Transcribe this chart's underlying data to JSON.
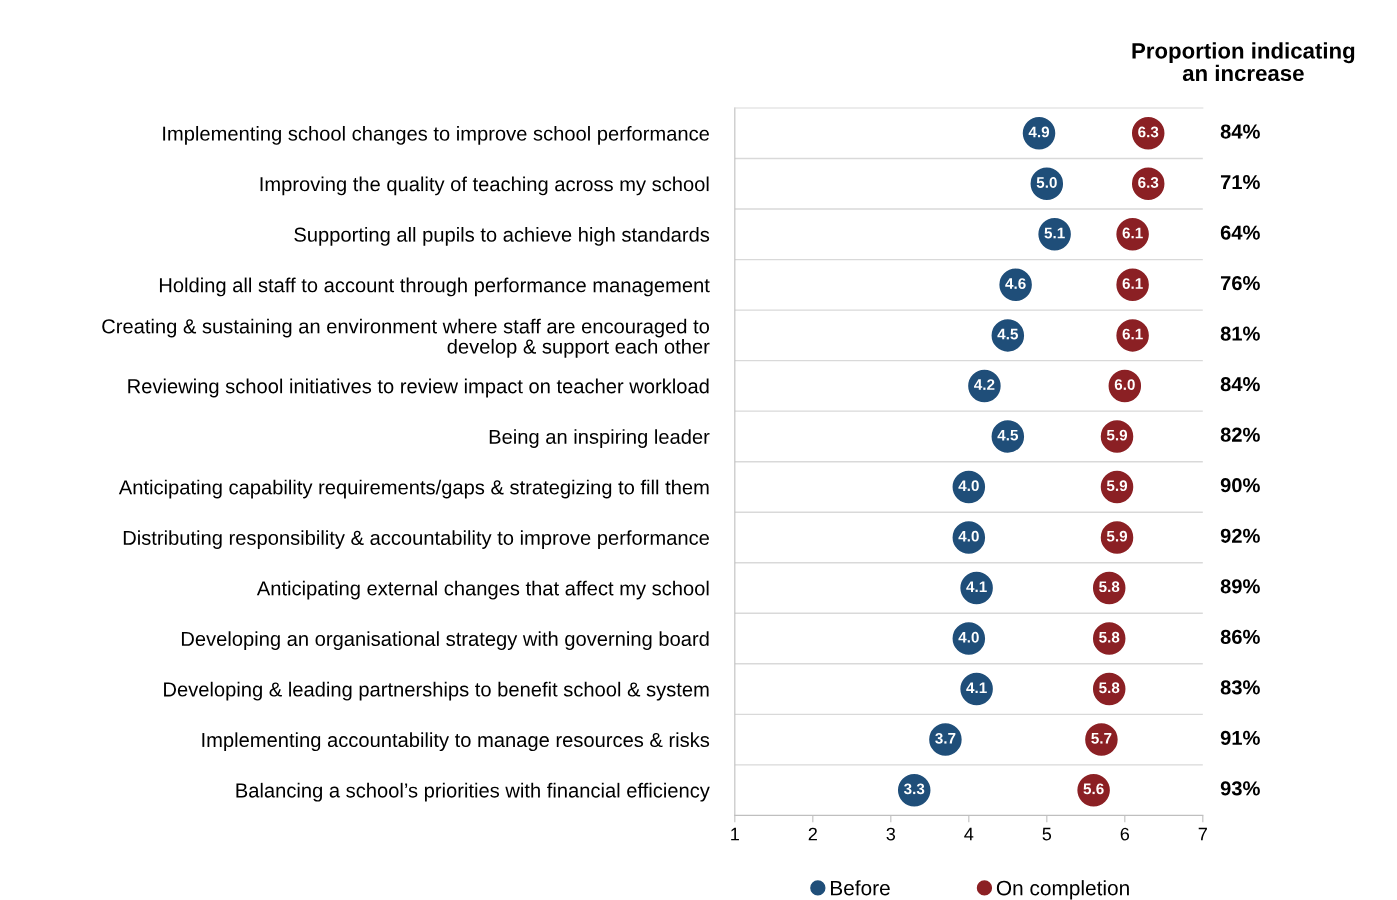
{
  "chart_data": {
    "type": "scatter",
    "categories": [
      "Implementing school changes to improve school performance",
      "Improving the quality of teaching across my school",
      "Supporting all pupils to achieve high standards",
      "Holding all staff to account through performance management",
      "Creating & sustaining an environment where staff are encouraged to\ndevelop & support each other",
      "Reviewing school initiatives to review impact on teacher workload",
      "Being an inspiring leader",
      "Anticipating capability requirements/gaps & strategizing to fill them",
      "Distributing responsibility & accountability to improve performance",
      "Anticipating external changes that affect my school",
      "Developing an organisational strategy with governing board",
      "Developing & leading partnerships to benefit school & system",
      "Implementing accountability to manage resources & risks",
      "Balancing a school’s priorities with financial efficiency"
    ],
    "orientation": "horizontal",
    "series": [
      {
        "name": "Before",
        "color": "#1f4e79",
        "values": [
          4.9,
          5.0,
          5.1,
          4.6,
          4.5,
          4.2,
          4.5,
          4.0,
          4.0,
          4.1,
          4.0,
          4.1,
          3.7,
          3.3
        ],
        "value_labels": [
          "4.9",
          "5.0",
          "5.1",
          "4.6",
          "4.5",
          "4.2",
          "4.5",
          "4.0",
          "4.0",
          "4.1",
          "4.0",
          "4.1",
          "3.7",
          "3.3"
        ]
      },
      {
        "name": "On completion",
        "color": "#8b2024",
        "values": [
          6.3,
          6.3,
          6.1,
          6.1,
          6.1,
          6.0,
          5.9,
          5.9,
          5.9,
          5.8,
          5.8,
          5.8,
          5.7,
          5.6
        ],
        "value_labels": [
          "6.3",
          "6.3",
          "6.1",
          "6.1",
          "6.1",
          "6.0",
          "5.9",
          "5.9",
          "5.9",
          "5.8",
          "5.8",
          "5.8",
          "5.7",
          "5.6"
        ]
      }
    ],
    "xlim": [
      1,
      7
    ],
    "xticks": [
      1,
      2,
      3,
      4,
      5,
      6,
      7
    ],
    "marker": "circle",
    "grid": "y",
    "legend": "bottom",
    "annotations": [
      "Proportion indicating\nan increase",
      "84%",
      "71%",
      "64%",
      "76%",
      "81%",
      "84%",
      "82%",
      "90%",
      "92%",
      "89%",
      "86%",
      "83%",
      "91%",
      "93%"
    ]
  }
}
